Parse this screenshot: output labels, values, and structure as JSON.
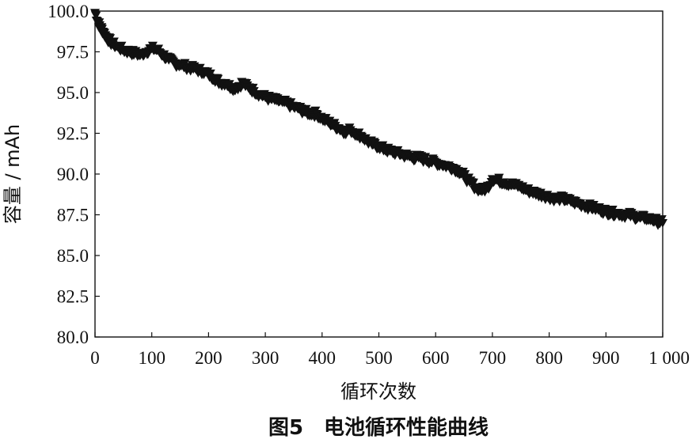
{
  "figure_caption": "图5　电池循环性能曲线",
  "chart_data": {
    "type": "scatter",
    "title": "",
    "xlabel": "循环次数",
    "ylabel": "容量 / mAh",
    "xlim": [
      0,
      1000
    ],
    "ylim": [
      80.0,
      100.0
    ],
    "x_ticks": [
      0,
      100,
      200,
      300,
      400,
      500,
      600,
      700,
      800,
      900,
      1000
    ],
    "x_tick_labels": [
      "0",
      "100",
      "200",
      "300",
      "400",
      "500",
      "600",
      "700",
      "800",
      "900",
      "1 000"
    ],
    "y_ticks": [
      80.0,
      82.5,
      85.0,
      87.5,
      90.0,
      92.5,
      95.0,
      97.5,
      100.0
    ],
    "y_tick_labels": [
      "80.0",
      "82.5",
      "85.0",
      "87.5",
      "90.0",
      "92.5",
      "95.0",
      "97.5",
      "100.0"
    ],
    "grid": false,
    "marker": "triangle-down",
    "marker_color": "#111111",
    "series": [
      {
        "x": [
          0,
          5,
          10,
          15,
          20,
          30,
          40,
          50,
          60,
          70,
          80,
          90,
          100,
          110,
          120,
          130,
          140,
          150,
          160,
          170,
          180,
          190,
          200,
          210,
          220,
          230,
          240,
          250,
          260,
          270,
          280,
          290,
          300,
          310,
          320,
          330,
          340,
          350,
          360,
          370,
          380,
          390,
          400,
          410,
          420,
          430,
          440,
          450,
          460,
          470,
          480,
          490,
          500,
          510,
          520,
          530,
          540,
          550,
          560,
          570,
          580,
          590,
          600,
          610,
          620,
          630,
          640,
          650,
          660,
          670,
          680,
          690,
          700,
          710,
          720,
          730,
          740,
          750,
          760,
          770,
          780,
          790,
          800,
          810,
          820,
          830,
          840,
          850,
          860,
          870,
          880,
          890,
          900,
          910,
          920,
          930,
          940,
          950,
          960,
          970,
          980,
          990,
          1000
        ],
        "values": [
          99.9,
          99.3,
          99.0,
          98.7,
          98.4,
          98.0,
          97.8,
          97.6,
          97.5,
          97.4,
          97.3,
          97.5,
          97.7,
          97.6,
          97.3,
          97.0,
          96.8,
          96.7,
          96.6,
          96.5,
          96.4,
          96.3,
          96.1,
          95.9,
          95.6,
          95.6,
          95.3,
          95.3,
          95.6,
          95.3,
          95.1,
          94.9,
          94.7,
          94.6,
          94.5,
          94.4,
          94.3,
          94.1,
          94.0,
          93.8,
          93.7,
          93.7,
          93.4,
          93.2,
          93.0,
          92.8,
          92.6,
          92.7,
          92.5,
          92.3,
          92.0,
          91.8,
          91.7,
          91.5,
          91.4,
          91.3,
          91.2,
          91.1,
          91.0,
          91.0,
          90.9,
          90.8,
          90.7,
          90.6,
          90.5,
          90.4,
          90.2,
          89.9,
          89.5,
          89.2,
          89.0,
          89.1,
          89.7,
          89.6,
          89.5,
          89.4,
          89.3,
          89.2,
          89.0,
          88.9,
          88.8,
          88.7,
          88.6,
          88.5,
          88.5,
          88.4,
          88.3,
          88.2,
          88.1,
          88.0,
          87.9,
          87.8,
          87.7,
          87.6,
          87.6,
          87.5,
          87.5,
          87.4,
          87.3,
          87.3,
          87.2,
          87.1,
          87.0
        ]
      }
    ]
  }
}
